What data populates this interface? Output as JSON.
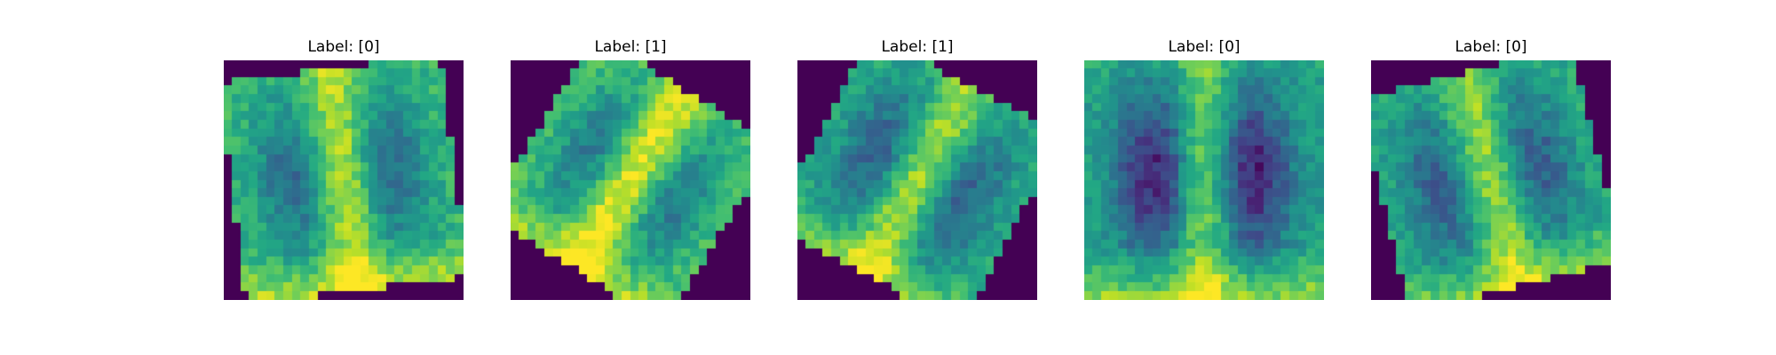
{
  "colormap": [
    "#440154",
    "#482475",
    "#414487",
    "#355f8d",
    "#2a788e",
    "#21918c",
    "#22a884",
    "#44bf70",
    "#7ad151",
    "#bddf26",
    "#fde725"
  ],
  "panels": [
    {
      "title": "Label: [0]",
      "label": 0,
      "content": "chest X-ray thumbnail, slightly rotated, bright lower center and upper center"
    },
    {
      "title": "Label: [1]",
      "label": 1,
      "content": "chest X-ray thumbnail, strongly rotated, mostly bright with darker lung regions"
    },
    {
      "title": "Label: [1]",
      "label": 1,
      "content": "chest X-ray thumbnail, rotated, bright diagonal band through center"
    },
    {
      "title": "Label: [0]",
      "label": 0,
      "content": "chest X-ray thumbnail, upright, dark lungs with bright spine and lower edge"
    },
    {
      "title": "Label: [0]",
      "label": 0,
      "content": "chest X-ray thumbnail, slightly rotated, mid-tone lungs with bright upper and lower edges"
    }
  ]
}
